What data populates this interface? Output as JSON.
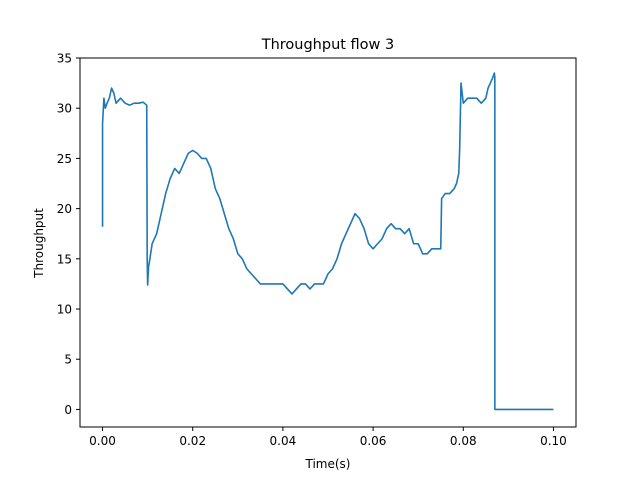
{
  "chart_data": {
    "type": "line",
    "title": "Throughput flow 3",
    "xlabel": "Time(s)",
    "ylabel": "Throughput",
    "xlim": [
      -0.005,
      0.105
    ],
    "ylim": [
      -1.75,
      35
    ],
    "grid": false,
    "line_color": "#1f77b4",
    "x_ticks": [
      0.0,
      0.02,
      0.04,
      0.06,
      0.08,
      0.1
    ],
    "x_tick_labels": [
      "0.00",
      "0.02",
      "0.04",
      "0.06",
      "0.08",
      "0.10"
    ],
    "y_ticks": [
      0,
      5,
      10,
      15,
      20,
      25,
      30,
      35
    ],
    "y_tick_labels": [
      "0",
      "5",
      "10",
      "15",
      "20",
      "25",
      "30",
      "35"
    ],
    "series": [
      {
        "x": [
          0.0,
          0.0,
          0.0,
          0.0003,
          0.0006,
          0.001,
          0.0015,
          0.002,
          0.0025,
          0.003,
          0.004,
          0.005,
          0.006,
          0.007,
          0.008,
          0.009,
          0.0098,
          0.0099,
          0.01,
          0.0102,
          0.0105,
          0.011,
          0.012,
          0.013,
          0.014,
          0.015,
          0.016,
          0.017,
          0.018,
          0.019,
          0.02,
          0.021,
          0.022,
          0.023,
          0.024,
          0.025,
          0.026,
          0.027,
          0.028,
          0.029,
          0.03,
          0.031,
          0.032,
          0.033,
          0.034,
          0.035,
          0.036,
          0.037,
          0.038,
          0.039,
          0.04,
          0.041,
          0.042,
          0.043,
          0.044,
          0.045,
          0.046,
          0.047,
          0.048,
          0.049,
          0.05,
          0.051,
          0.052,
          0.053,
          0.054,
          0.055,
          0.056,
          0.057,
          0.058,
          0.059,
          0.06,
          0.061,
          0.062,
          0.063,
          0.064,
          0.065,
          0.066,
          0.067,
          0.068,
          0.069,
          0.07,
          0.071,
          0.072,
          0.073,
          0.074,
          0.075,
          0.0752,
          0.076,
          0.077,
          0.078,
          0.0785,
          0.079,
          0.0792,
          0.0795,
          0.08,
          0.081,
          0.082,
          0.083,
          0.084,
          0.085,
          0.0855,
          0.086,
          0.0865,
          0.0869,
          0.087,
          0.087,
          0.09,
          0.1
        ],
        "y": [
          18.2,
          26.2,
          28.5,
          31.0,
          30.0,
          30.5,
          31.0,
          32.0,
          31.5,
          30.5,
          31.0,
          30.5,
          30.3,
          30.5,
          30.5,
          30.6,
          30.3,
          15.0,
          12.4,
          14.2,
          15.0,
          16.5,
          17.5,
          19.5,
          21.5,
          23.0,
          24.0,
          23.5,
          24.5,
          25.5,
          25.8,
          25.5,
          25.0,
          25.0,
          24.0,
          22.0,
          21.0,
          19.5,
          18.0,
          17.0,
          15.5,
          15.0,
          14.0,
          13.5,
          13.0,
          12.5,
          12.5,
          12.5,
          12.5,
          12.5,
          12.5,
          12.0,
          11.5,
          12.0,
          12.5,
          12.5,
          12.0,
          12.5,
          12.5,
          12.5,
          13.5,
          14.0,
          15.0,
          16.5,
          17.5,
          18.5,
          19.5,
          19.0,
          18.0,
          16.5,
          16.0,
          16.5,
          17.0,
          18.0,
          18.5,
          18.0,
          18.0,
          17.5,
          18.0,
          16.5,
          16.5,
          15.5,
          15.5,
          16.0,
          16.0,
          16.0,
          21.0,
          21.5,
          21.5,
          22.0,
          22.5,
          23.5,
          26.0,
          32.5,
          30.5,
          31.0,
          31.0,
          31.0,
          30.5,
          31.0,
          32.0,
          32.5,
          33.0,
          33.5,
          33.0,
          0,
          0,
          0
        ]
      }
    ]
  }
}
